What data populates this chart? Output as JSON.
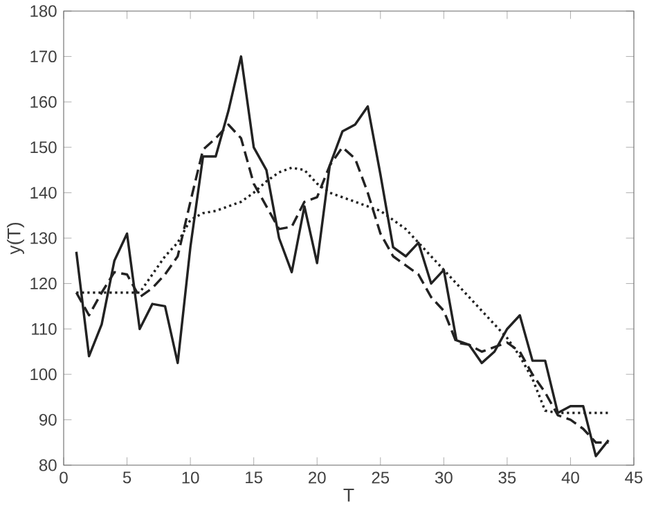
{
  "chart_data": {
    "type": "line",
    "xlabel": "T",
    "ylabel": "y(T)",
    "xlim": [
      0,
      45
    ],
    "ylim": [
      80,
      180
    ],
    "xticks": [
      0,
      5,
      10,
      15,
      20,
      25,
      30,
      35,
      40,
      45
    ],
    "yticks": [
      80,
      90,
      100,
      110,
      120,
      130,
      140,
      150,
      160,
      170,
      180
    ],
    "grid": false,
    "marker": "none",
    "series": [
      {
        "color": "#222222",
        "line_style": "solid",
        "x": [
          1,
          2,
          3,
          4,
          5,
          6,
          7,
          8,
          9,
          10,
          11,
          12,
          13,
          14,
          15,
          16,
          17,
          18,
          19,
          20,
          21,
          22,
          23,
          24,
          25,
          26,
          27,
          28,
          29,
          30,
          31,
          32,
          33,
          34,
          35,
          36,
          37,
          38,
          39,
          40,
          41,
          42,
          43
        ],
        "values": [
          127,
          104,
          111,
          125,
          131,
          110,
          115.5,
          115,
          102.5,
          128,
          148,
          148,
          158,
          170,
          150,
          145,
          130,
          122.5,
          137,
          124.5,
          146,
          153.5,
          155,
          159,
          144,
          128,
          126,
          129,
          120,
          123,
          107.5,
          106.5,
          102.5,
          105,
          110,
          113,
          103,
          103,
          91.5,
          93,
          93,
          82,
          85.5
        ]
      },
      {
        "color": "#222222",
        "line_style": "dashed",
        "x": [
          1,
          2,
          3,
          4,
          5,
          6,
          7,
          8,
          9,
          10,
          11,
          12,
          13,
          14,
          15,
          16,
          17,
          18,
          19,
          20,
          21,
          22,
          23,
          24,
          25,
          26,
          27,
          28,
          29,
          30,
          31,
          32,
          33,
          34,
          35,
          36,
          37,
          38,
          39,
          40,
          41,
          42,
          43
        ],
        "values": [
          118,
          113,
          118,
          122.5,
          122,
          117,
          119,
          122,
          126,
          138,
          149.5,
          152,
          155,
          152,
          142,
          137,
          132,
          132.5,
          138,
          139,
          146,
          150,
          147.5,
          140,
          131,
          126,
          124,
          122,
          117,
          114,
          107,
          106.5,
          105,
          106,
          107,
          105,
          100,
          96,
          91,
          90,
          88,
          85,
          85
        ]
      },
      {
        "color": "#222222",
        "line_style": "dotted",
        "x": [
          1,
          2,
          3,
          4,
          5,
          6,
          7,
          8,
          9,
          10,
          11,
          12,
          13,
          14,
          15,
          16,
          17,
          18,
          19,
          20,
          21,
          22,
          23,
          24,
          25,
          26,
          27,
          28,
          29,
          30,
          31,
          32,
          33,
          34,
          35,
          36,
          37,
          38,
          39,
          40,
          41,
          42,
          43
        ],
        "values": [
          118,
          118,
          118,
          118,
          118,
          118,
          122,
          126,
          129,
          134,
          135.5,
          136,
          137,
          138,
          140,
          142.5,
          144.5,
          145.5,
          145,
          142,
          140,
          139,
          138,
          137,
          136,
          134,
          132,
          129,
          126,
          123,
          120,
          117,
          114,
          111,
          108,
          104,
          99,
          92,
          91.5,
          91.5,
          91.5,
          91.5,
          91.5
        ]
      }
    ]
  }
}
